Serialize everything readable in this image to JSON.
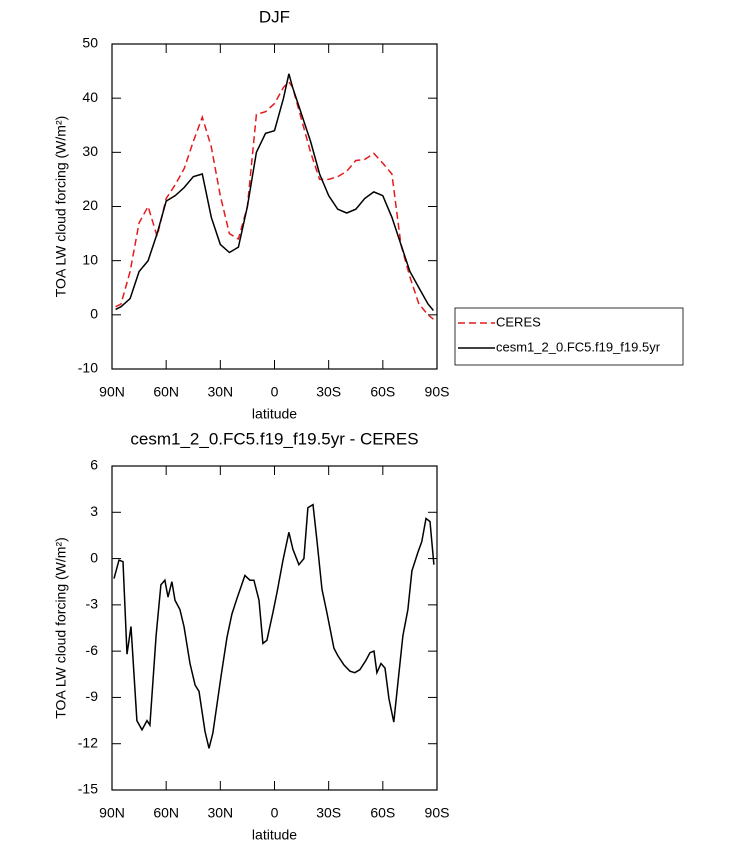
{
  "chart_data": [
    {
      "type": "line",
      "title": "DJF",
      "xlabel": "latitude",
      "ylabel": "TOA LW cloud forcing (W/m²)",
      "x": [
        88,
        85,
        80,
        75,
        70,
        65,
        60,
        55,
        50,
        45,
        40,
        35,
        30,
        25,
        20,
        15,
        10,
        5,
        0,
        -5,
        -8,
        -10,
        -15,
        -20,
        -25,
        -30,
        -35,
        -40,
        -45,
        -50,
        -55,
        -60,
        -65,
        -70,
        -75,
        -80,
        -85,
        -88
      ],
      "series": [
        {
          "name": "CERES",
          "color": "#e41a1c",
          "dash": true,
          "values": [
            1.5,
            2,
            8,
            17,
            20,
            14.5,
            21.5,
            24,
            27,
            32,
            36.5,
            31,
            22,
            15,
            14,
            20,
            37,
            37.5,
            39,
            42,
            43,
            42,
            36,
            30,
            25,
            25,
            25.5,
            26.5,
            28.5,
            28.7,
            29.8,
            28,
            26,
            13,
            7,
            2,
            0,
            -0.8
          ]
        },
        {
          "name": "cesm1_2_0.FC5.f19_f19.5yr",
          "color": "#000000",
          "dash": false,
          "values": [
            1,
            1.5,
            3,
            8,
            10,
            15,
            21,
            22,
            23.5,
            25.5,
            26,
            18,
            13,
            11.5,
            12.5,
            20,
            30,
            33.5,
            34,
            40,
            44.5,
            42,
            37,
            32,
            26,
            22,
            19.5,
            18.8,
            19.5,
            21.5,
            22.7,
            22,
            18,
            13,
            8,
            5,
            2,
            0.8
          ]
        }
      ],
      "xlim": [
        90,
        -90
      ],
      "xticks": [
        {
          "value": 90,
          "label": "90N"
        },
        {
          "value": 60,
          "label": "60N"
        },
        {
          "value": 30,
          "label": "30N"
        },
        0,
        {
          "value": -30,
          "label": "30S"
        },
        {
          "value": -60,
          "label": "60S"
        },
        {
          "value": -90,
          "label": "90S"
        }
      ],
      "ylim": [
        -10,
        50
      ],
      "yticks": [
        -10,
        0,
        10,
        20,
        30,
        40,
        50
      ],
      "legend": "right"
    },
    {
      "type": "line",
      "title": "cesm1_2_0.FC5.f19_f19.5yr - CERES",
      "xlabel": "latitude",
      "ylabel": "TOA LW cloud forcing (W/m²)",
      "x": [
        88.9,
        86.1,
        83.9,
        81.7,
        79.5,
        76.2,
        73.4,
        70.6,
        69,
        65.6,
        62.9,
        60.7,
        59,
        56.8,
        55.1,
        52.4,
        50.1,
        46.8,
        44,
        41.8,
        38.5,
        36.3,
        34.1,
        29.6,
        26.3,
        23.6,
        20.8,
        16.4,
        13.6,
        11.4,
        8.6,
        6.4,
        4.2,
        0.9,
        -1.4,
        -4.7,
        -8,
        -10.2,
        -13.5,
        -16.3,
        -18.5,
        -21.3,
        -23.5,
        -26.3,
        -29,
        -32.9,
        -35.1,
        -38.5,
        -41.8,
        -44.5,
        -47.3,
        -50.6,
        -52.9,
        -55.1,
        -56.7,
        -59,
        -61.2,
        -63.4,
        -66.1,
        -68.4,
        -71.1,
        -73.9,
        -76.1,
        -79.4,
        -81.6,
        -83.9,
        -86.1,
        -88.3
      ],
      "series": [
        {
          "name": "cesm1_2_0.FC5.f19_f19.5yr - CERES",
          "color": "#000000",
          "dash": false,
          "values": [
            -1.3,
            -0.1,
            -0.2,
            -6.2,
            -4.4,
            -10.5,
            -11.1,
            -10.5,
            -10.8,
            -5,
            -1.7,
            -1.4,
            -2.5,
            -1.5,
            -2.7,
            -3.3,
            -4.4,
            -6.8,
            -8.2,
            -8.6,
            -11.2,
            -12.3,
            -11.3,
            -7.6,
            -5.1,
            -3.6,
            -2.6,
            -1.1,
            -1.4,
            -1.4,
            -2.7,
            -5.5,
            -5.3,
            -3.5,
            -2.2,
            -0.1,
            1.7,
            0.6,
            -0.4,
            0,
            3.3,
            3.5,
            1.2,
            -2,
            -3.5,
            -5.8,
            -6.3,
            -6.9,
            -7.3,
            -7.4,
            -7.2,
            -6.6,
            -6.1,
            -6,
            -7.4,
            -6.8,
            -7.1,
            -9.1,
            -10.6,
            -8,
            -5,
            -3.3,
            -0.8,
            0.4,
            1.1,
            2.6,
            2.4,
            -0.4
          ]
        }
      ],
      "xlim": [
        90,
        -90
      ],
      "xticks": [
        {
          "value": 90,
          "label": "90N"
        },
        {
          "value": 60,
          "label": "60N"
        },
        {
          "value": 30,
          "label": "30N"
        },
        0,
        {
          "value": -30,
          "label": "30S"
        },
        {
          "value": -60,
          "label": "60S"
        },
        {
          "value": -90,
          "label": "90S"
        }
      ],
      "ylim": [
        -15,
        6
      ],
      "yticks": [
        -15,
        -12,
        -9,
        -6,
        -3,
        0,
        3,
        6
      ]
    }
  ]
}
